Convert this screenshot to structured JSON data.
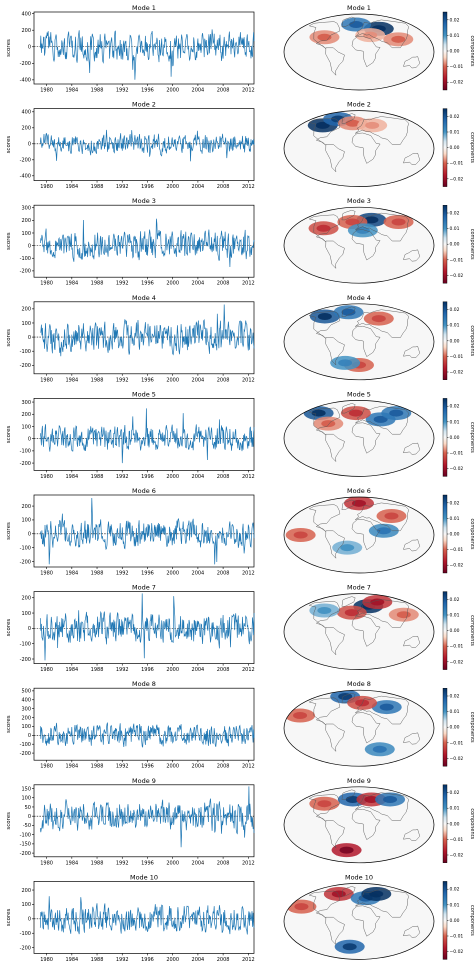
{
  "figure": {
    "x_tick_labels": [
      "1980",
      "1984",
      "1988",
      "1992",
      "1996",
      "2000",
      "2004",
      "2008",
      "2012"
    ],
    "y_axis_label": "scores",
    "colorbar_label": "components",
    "colorbar_ticks": [
      "0.02",
      "0.01",
      "0.00",
      "−0.01",
      "−0.02"
    ],
    "line_color": "#1f77b4"
  },
  "chart_data": [
    {
      "type": "line",
      "title": "Mode 1",
      "ylabel": "scores",
      "ylim": [
        -450,
        420
      ],
      "yticks": [
        -400,
        -200,
        0,
        200,
        400
      ],
      "x_range": [
        1978.0,
        2012.9
      ],
      "amp": 150,
      "seed": 1
    },
    {
      "type": "line",
      "title": "Mode 2",
      "ylabel": "scores",
      "ylim": [
        -460,
        440
      ],
      "yticks": [
        -400,
        -200,
        0,
        200,
        400
      ],
      "x_range": [
        1978.0,
        2012.9
      ],
      "amp": 110,
      "seed": 2
    },
    {
      "type": "line",
      "title": "Mode 3",
      "ylabel": "scores",
      "ylim": [
        -250,
        320
      ],
      "yticks": [
        -200,
        -100,
        0,
        100,
        200,
        300
      ],
      "x_range": [
        1978.0,
        2012.9
      ],
      "amp": 100,
      "seed": 3
    },
    {
      "type": "line",
      "title": "Mode 4",
      "ylabel": "scores",
      "ylim": [
        -260,
        250
      ],
      "yticks": [
        -200,
        -100,
        0,
        100,
        200
      ],
      "x_range": [
        1978.0,
        2012.9
      ],
      "amp": 95,
      "seed": 4
    },
    {
      "type": "line",
      "title": "Mode 5",
      "ylabel": "scores",
      "ylim": [
        -260,
        330
      ],
      "yticks": [
        -200,
        -100,
        0,
        100,
        200,
        300
      ],
      "x_range": [
        1978.0,
        2012.9
      ],
      "amp": 90,
      "seed": 5
    },
    {
      "type": "line",
      "title": "Mode 6",
      "ylabel": "scores",
      "ylim": [
        -240,
        280
      ],
      "yticks": [
        -200,
        -100,
        0,
        100,
        200
      ],
      "x_range": [
        1978.0,
        2012.9
      ],
      "amp": 85,
      "seed": 6
    },
    {
      "type": "line",
      "title": "Mode 7",
      "ylabel": "scores",
      "ylim": [
        -230,
        240
      ],
      "yticks": [
        -200,
        -100,
        0,
        100,
        200
      ],
      "x_range": [
        1978.0,
        2012.9
      ],
      "amp": 85,
      "seed": 7
    },
    {
      "type": "line",
      "title": "Mode 8",
      "ylabel": "scores",
      "ylim": [
        -280,
        530
      ],
      "yticks": [
        -200,
        -100,
        0,
        100,
        200,
        300,
        400,
        500
      ],
      "x_range": [
        1978.0,
        2012.9
      ],
      "amp": 110,
      "seed": 8
    },
    {
      "type": "line",
      "title": "Mode 9",
      "ylabel": "scores",
      "ylim": [
        -220,
        170
      ],
      "yticks": [
        -200,
        -150,
        -100,
        -50,
        0,
        50,
        100,
        150
      ],
      "x_range": [
        1978.0,
        2012.9
      ],
      "amp": 70,
      "seed": 9
    },
    {
      "type": "line",
      "title": "Mode 10",
      "ylabel": "scores",
      "ylim": [
        -240,
        260
      ],
      "yticks": [
        -200,
        -100,
        0,
        100,
        200
      ],
      "x_range": [
        1978.0,
        2012.9
      ],
      "amp": 80,
      "seed": 10
    }
  ],
  "maps": [
    {
      "title": "Mode 1",
      "blobs": [
        {
          "lon": 60,
          "lat": 55,
          "v": 0.025
        },
        {
          "lon": -10,
          "lat": 65,
          "v": 0.015
        },
        {
          "lon": -90,
          "lat": 35,
          "v": -0.008
        },
        {
          "lon": 100,
          "lat": 30,
          "v": -0.008
        },
        {
          "lon": 30,
          "lat": 40,
          "v": -0.006
        }
      ]
    },
    {
      "title": "Mode 2",
      "blobs": [
        {
          "lon": -110,
          "lat": 55,
          "v": 0.025
        },
        {
          "lon": -80,
          "lat": 70,
          "v": 0.018
        },
        {
          "lon": -20,
          "lat": 60,
          "v": -0.008
        },
        {
          "lon": 40,
          "lat": 55,
          "v": -0.006
        }
      ]
    },
    {
      "title": "Mode 3",
      "blobs": [
        {
          "lon": 40,
          "lat": 60,
          "v": 0.022
        },
        {
          "lon": -95,
          "lat": 40,
          "v": -0.012
        },
        {
          "lon": -20,
          "lat": 55,
          "v": -0.01
        },
        {
          "lon": 120,
          "lat": 55,
          "v": -0.01
        },
        {
          "lon": 10,
          "lat": 35,
          "v": 0.01
        }
      ]
    },
    {
      "title": "Mode 4",
      "blobs": [
        {
          "lon": -110,
          "lat": 60,
          "v": 0.02
        },
        {
          "lon": -40,
          "lat": 70,
          "v": 0.015
        },
        {
          "lon": 60,
          "lat": 55,
          "v": -0.01
        },
        {
          "lon": 0,
          "lat": -55,
          "v": -0.01
        },
        {
          "lon": -40,
          "lat": -50,
          "v": 0.01
        }
      ]
    },
    {
      "title": "Mode 5",
      "blobs": [
        {
          "lon": -130,
          "lat": 60,
          "v": 0.02
        },
        {
          "lon": 60,
          "lat": 45,
          "v": 0.015
        },
        {
          "lon": -10,
          "lat": 60,
          "v": -0.012
        },
        {
          "lon": 120,
          "lat": 60,
          "v": 0.015
        },
        {
          "lon": -80,
          "lat": 35,
          "v": -0.008
        }
      ]
    },
    {
      "title": "Mode 6",
      "blobs": [
        {
          "lon": 0,
          "lat": 75,
          "v": -0.015
        },
        {
          "lon": -140,
          "lat": 0,
          "v": -0.01
        },
        {
          "lon": 60,
          "lat": 10,
          "v": 0.012
        },
        {
          "lon": 90,
          "lat": 45,
          "v": -0.01
        },
        {
          "lon": -30,
          "lat": -30,
          "v": 0.008
        }
      ]
    },
    {
      "title": "Mode 7",
      "blobs": [
        {
          "lon": 30,
          "lat": 60,
          "v": 0.028
        },
        {
          "lon": 70,
          "lat": 70,
          "v": -0.015
        },
        {
          "lon": -20,
          "lat": 45,
          "v": -0.012
        },
        {
          "lon": 120,
          "lat": 40,
          "v": -0.008
        },
        {
          "lon": -100,
          "lat": 50,
          "v": 0.008
        }
      ]
    },
    {
      "title": "Mode 8",
      "blobs": [
        {
          "lon": -60,
          "lat": 75,
          "v": 0.018
        },
        {
          "lon": -150,
          "lat": 30,
          "v": -0.01
        },
        {
          "lon": 80,
          "lat": 50,
          "v": 0.015
        },
        {
          "lon": 10,
          "lat": 60,
          "v": -0.012
        },
        {
          "lon": 60,
          "lat": -50,
          "v": 0.012
        }
      ]
    },
    {
      "title": "Mode 9",
      "blobs": [
        {
          "lon": -20,
          "lat": 60,
          "v": 0.018
        },
        {
          "lon": 40,
          "lat": 60,
          "v": -0.015
        },
        {
          "lon": 100,
          "lat": 60,
          "v": 0.015
        },
        {
          "lon": -40,
          "lat": -60,
          "v": -0.018
        },
        {
          "lon": -100,
          "lat": 50,
          "v": -0.01
        }
      ]
    },
    {
      "title": "Mode 10",
      "blobs": [
        {
          "lon": -70,
          "lat": 65,
          "v": -0.015
        },
        {
          "lon": 20,
          "lat": 55,
          "v": 0.015
        },
        {
          "lon": 60,
          "lat": 65,
          "v": 0.025
        },
        {
          "lon": -30,
          "lat": -60,
          "v": 0.018
        },
        {
          "lon": -150,
          "lat": 35,
          "v": -0.01
        }
      ]
    }
  ]
}
